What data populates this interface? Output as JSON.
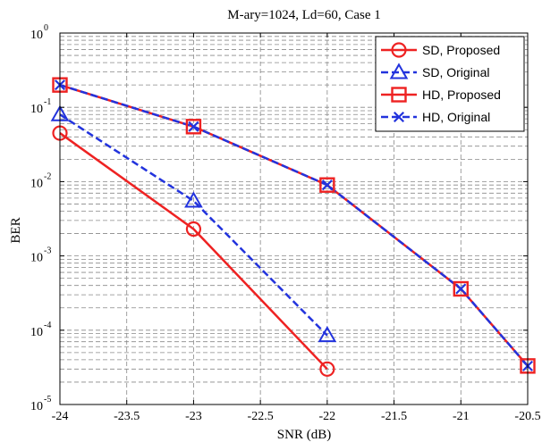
{
  "chart_data": {
    "type": "line",
    "title": "M-ary=1024, Ld=60, Case 1",
    "xlabel": "SNR (dB)",
    "ylabel": "BER",
    "xlim": [
      -24,
      -20.5
    ],
    "ylim": [
      1e-05,
      1
    ],
    "yscale": "log",
    "grid": true,
    "legend_position": "top-right",
    "x_ticks": [
      "-24",
      "-23.5",
      "-23",
      "-22.5",
      "-22",
      "-21.5",
      "-21",
      "-20.5"
    ],
    "y_ticks": [
      {
        "base": "10",
        "exp": "0"
      },
      {
        "base": "10",
        "exp": "-1"
      },
      {
        "base": "10",
        "exp": "-2"
      },
      {
        "base": "10",
        "exp": "-3"
      },
      {
        "base": "10",
        "exp": "-4"
      },
      {
        "base": "10",
        "exp": "-5"
      }
    ],
    "series": [
      {
        "name": "SD, Proposed",
        "color": "#ee2222",
        "line": "solid",
        "marker": "circle",
        "x": [
          -24,
          -23,
          -22
        ],
        "y": [
          0.045,
          0.0023,
          3e-05
        ]
      },
      {
        "name": "SD, Original",
        "color": "#2233dd",
        "line": "dashed",
        "marker": "triangle",
        "x": [
          -24,
          -23,
          -22
        ],
        "y": [
          0.08,
          0.0055,
          8.5e-05
        ]
      },
      {
        "name": "HD, Proposed",
        "color": "#ee2222",
        "line": "solid",
        "marker": "square",
        "x": [
          -24,
          -23,
          -22,
          -21,
          -20.5
        ],
        "y": [
          0.2,
          0.055,
          0.009,
          0.00036,
          3.3e-05
        ]
      },
      {
        "name": "HD, Original",
        "color": "#2233dd",
        "line": "dashed",
        "marker": "x",
        "x": [
          -24,
          -23,
          -22,
          -21,
          -20.5
        ],
        "y": [
          0.2,
          0.055,
          0.009,
          0.00036,
          3.3e-05
        ]
      }
    ]
  }
}
